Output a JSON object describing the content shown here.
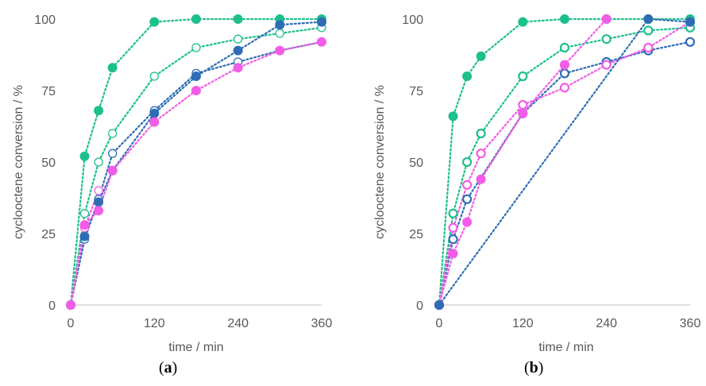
{
  "colors": {
    "green": "#1DBF8C",
    "blue": "#2E6DB4",
    "pink": "#F25CE6",
    "axis": "#bfbfbf",
    "text": "#595959"
  },
  "chart_data": [
    {
      "type": "scatter",
      "caption_letter": "a",
      "xlabel": "time / min",
      "ylabel": "cyclooctene conversion / %",
      "xlim": [
        0,
        360
      ],
      "ylim": [
        0,
        100
      ],
      "xticks": [
        "0",
        "120",
        "240",
        "360"
      ],
      "yticks": [
        "0",
        "25",
        "50",
        "75",
        "100"
      ],
      "grid": false,
      "line_style": "dotted",
      "series": [
        {
          "color": "green",
          "marker": "filled",
          "x": [
            0,
            20,
            40,
            60,
            120,
            180,
            240,
            300,
            360
          ],
          "y": [
            0,
            52,
            68,
            83,
            99,
            100,
            100,
            100,
            100
          ]
        },
        {
          "color": "green",
          "marker": "open",
          "x": [
            0,
            20,
            40,
            60,
            120,
            180,
            240,
            300,
            360
          ],
          "y": [
            0,
            32,
            50,
            60,
            80,
            90,
            93,
            95,
            97
          ]
        },
        {
          "color": "blue",
          "marker": "open",
          "x": [
            0,
            20,
            40,
            60,
            120,
            180,
            240,
            300,
            360
          ],
          "y": [
            0,
            23,
            37,
            53,
            68,
            81,
            85,
            89,
            92
          ]
        },
        {
          "color": "blue",
          "marker": "filled",
          "x": [
            0,
            20,
            40,
            60,
            120,
            180,
            240,
            300,
            360
          ],
          "y": [
            0,
            24,
            36,
            47,
            67,
            80,
            89,
            98,
            99
          ]
        },
        {
          "color": "pink",
          "marker": "open",
          "x": [
            0,
            20,
            40
          ],
          "y": [
            0,
            27,
            40
          ]
        },
        {
          "color": "pink",
          "marker": "filled",
          "x": [
            0,
            20,
            40,
            60,
            120,
            180,
            240,
            300,
            360
          ],
          "y": [
            0,
            28,
            33,
            47,
            64,
            75,
            83,
            89,
            92
          ]
        }
      ]
    },
    {
      "type": "scatter",
      "caption_letter": "b",
      "xlabel": "time / min",
      "ylabel": "cyclooctene conversion / %",
      "xlim": [
        0,
        360
      ],
      "ylim": [
        0,
        100
      ],
      "xticks": [
        "0",
        "120",
        "240",
        "360"
      ],
      "yticks": [
        "0",
        "25",
        "50",
        "75",
        "100"
      ],
      "grid": false,
      "line_style": "dotted",
      "series": [
        {
          "color": "green",
          "marker": "filled",
          "x": [
            0,
            20,
            40,
            60,
            120,
            180,
            240,
            300,
            360
          ],
          "y": [
            0,
            66,
            80,
            87,
            99,
            100,
            100,
            100,
            100
          ]
        },
        {
          "color": "green",
          "marker": "open",
          "x": [
            0,
            20,
            40,
            60,
            120,
            180,
            240,
            300,
            360
          ],
          "y": [
            0,
            32,
            50,
            60,
            80,
            90,
            93,
            96,
            97
          ]
        },
        {
          "color": "blue",
          "marker": "open",
          "x": [
            0,
            20,
            40,
            120,
            180,
            240,
            300,
            360
          ],
          "y": [
            0,
            23,
            37,
            67,
            81,
            85,
            89,
            92
          ]
        },
        {
          "color": "pink",
          "marker": "open",
          "x": [
            0,
            20,
            40,
            60,
            120,
            180,
            240,
            300,
            360
          ],
          "y": [
            0,
            27,
            42,
            53,
            70,
            76,
            84,
            90,
            99
          ]
        },
        {
          "color": "pink",
          "marker": "filled",
          "x": [
            0,
            20,
            40,
            60,
            120,
            180,
            240
          ],
          "y": [
            0,
            18,
            29,
            44,
            67,
            84,
            100
          ]
        },
        {
          "color": "blue",
          "marker": "filled",
          "x": [
            0,
            300,
            360
          ],
          "y": [
            0,
            100,
            99
          ]
        }
      ]
    }
  ]
}
